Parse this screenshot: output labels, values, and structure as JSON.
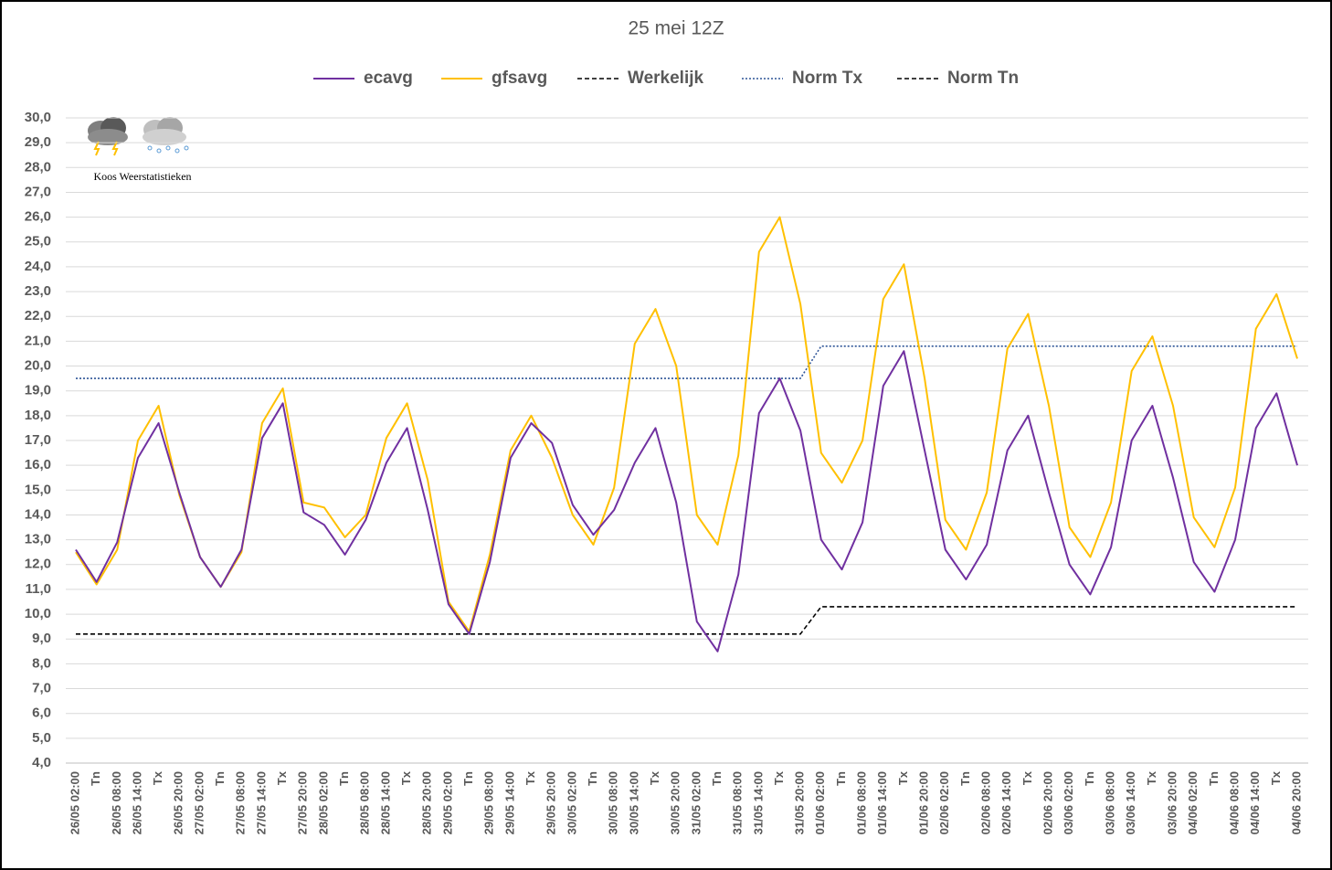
{
  "chart_data": {
    "type": "line",
    "title": "25 mei 12Z",
    "watermark": "Koos Weerstatistieken",
    "categories": [
      "26/05 02:00",
      "Tn",
      "26/05 08:00",
      "26/05 14:00",
      "Tx",
      "26/05 20:00",
      "27/05 02:00",
      "Tn",
      "27/05 08:00",
      "27/05 14:00",
      "Tx",
      "27/05 20:00",
      "28/05 02:00",
      "Tn",
      "28/05 08:00",
      "28/05 14:00",
      "Tx",
      "28/05 20:00",
      "29/05 02:00",
      "Tn",
      "29/05 08:00",
      "29/05 14:00",
      "Tx",
      "29/05 20:00",
      "30/05 02:00",
      "Tn",
      "30/05 08:00",
      "30/05 14:00",
      "Tx",
      "30/05 20:00",
      "31/05 02:00",
      "Tn",
      "31/05 08:00",
      "31/05 14:00",
      "Tx",
      "31/05 20:00",
      "01/06 02:00",
      "Tn",
      "01/06 08:00",
      "01/06 14:00",
      "Tx",
      "01/06 20:00",
      "02/06 02:00",
      "Tn",
      "02/06 08:00",
      "02/06 14:00",
      "Tx",
      "02/06 20:00",
      "03/06 02:00",
      "Tn",
      "03/06 08:00",
      "03/06 14:00",
      "Tx",
      "03/06 20:00",
      "04/06 02:00",
      "Tn",
      "04/06 08:00",
      "04/06 14:00",
      "Tx",
      "04/06 20:00"
    ],
    "series": [
      {
        "name": "ecavg",
        "color": "#7030a0",
        "style": "solid",
        "values": [
          12.6,
          11.3,
          12.9,
          16.3,
          17.7,
          14.9,
          12.3,
          11.1,
          12.6,
          17.1,
          18.5,
          14.1,
          13.6,
          12.4,
          13.8,
          16.1,
          17.5,
          14.2,
          10.4,
          9.2,
          12.1,
          16.3,
          17.7,
          16.9,
          14.4,
          13.2,
          14.2,
          16.1,
          17.5,
          14.5,
          9.7,
          8.5,
          11.6,
          18.1,
          19.5,
          17.4,
          13.0,
          11.8,
          13.7,
          19.2,
          20.6,
          16.6,
          12.6,
          11.4,
          12.8,
          16.6,
          18.0,
          14.9,
          12.0,
          10.8,
          12.7,
          17.0,
          18.4,
          15.5,
          12.1,
          10.9,
          13.0,
          17.5,
          18.9,
          16.0
        ]
      },
      {
        "name": "gfsavg",
        "color": "#ffc000",
        "style": "solid",
        "values": [
          12.5,
          11.2,
          12.6,
          17.0,
          18.4,
          14.8,
          12.3,
          11.1,
          12.5,
          17.7,
          19.1,
          14.5,
          14.3,
          13.1,
          14.0,
          17.1,
          18.5,
          15.4,
          10.5,
          9.3,
          12.4,
          16.6,
          18.0,
          16.3,
          14.0,
          12.8,
          15.1,
          20.9,
          22.3,
          20.0,
          14.0,
          12.8,
          16.4,
          24.6,
          26.0,
          22.5,
          16.5,
          15.3,
          17.0,
          22.7,
          24.1,
          19.5,
          13.8,
          12.6,
          14.9,
          20.7,
          22.1,
          18.4,
          13.5,
          12.3,
          14.5,
          19.8,
          21.2,
          18.4,
          13.9,
          12.7,
          15.1,
          21.5,
          22.9,
          20.3
        ]
      },
      {
        "name": "Werkelijk",
        "color": "#000000",
        "style": "dashed",
        "values": [
          null,
          null,
          null,
          null,
          null,
          null,
          null,
          null,
          null,
          null,
          null,
          null,
          null,
          null,
          null,
          null,
          null,
          null,
          null,
          null,
          null,
          null,
          null,
          null,
          null,
          null,
          null,
          null,
          null,
          null,
          null,
          null,
          null,
          null,
          null,
          null,
          null,
          null,
          null,
          null,
          null,
          null,
          null,
          null,
          null,
          null,
          null,
          null,
          null,
          null,
          null,
          null,
          null,
          null,
          null,
          null,
          null,
          null,
          null,
          null
        ]
      },
      {
        "name": "Norm Tx",
        "color": "#2f5597",
        "style": "dotted",
        "values": [
          19.5,
          19.5,
          19.5,
          19.5,
          19.5,
          19.5,
          19.5,
          19.5,
          19.5,
          19.5,
          19.5,
          19.5,
          19.5,
          19.5,
          19.5,
          19.5,
          19.5,
          19.5,
          19.5,
          19.5,
          19.5,
          19.5,
          19.5,
          19.5,
          19.5,
          19.5,
          19.5,
          19.5,
          19.5,
          19.5,
          19.5,
          19.5,
          19.5,
          19.5,
          19.5,
          19.5,
          20.8,
          20.8,
          20.8,
          20.8,
          20.8,
          20.8,
          20.8,
          20.8,
          20.8,
          20.8,
          20.8,
          20.8,
          20.8,
          20.8,
          20.8,
          20.8,
          20.8,
          20.8,
          20.8,
          20.8,
          20.8,
          20.8,
          20.8,
          20.8
        ]
      },
      {
        "name": "Norm Tn",
        "color": "#000000",
        "style": "dashed",
        "values": [
          9.2,
          9.2,
          9.2,
          9.2,
          9.2,
          9.2,
          9.2,
          9.2,
          9.2,
          9.2,
          9.2,
          9.2,
          9.2,
          9.2,
          9.2,
          9.2,
          9.2,
          9.2,
          9.2,
          9.2,
          9.2,
          9.2,
          9.2,
          9.2,
          9.2,
          9.2,
          9.2,
          9.2,
          9.2,
          9.2,
          9.2,
          9.2,
          9.2,
          9.2,
          9.2,
          9.2,
          10.3,
          10.3,
          10.3,
          10.3,
          10.3,
          10.3,
          10.3,
          10.3,
          10.3,
          10.3,
          10.3,
          10.3,
          10.3,
          10.3,
          10.3,
          10.3,
          10.3,
          10.3,
          10.3,
          10.3,
          10.3,
          10.3,
          10.3,
          10.3
        ]
      }
    ],
    "ylim": [
      4,
      30
    ],
    "yticks": [
      {
        "value": 4,
        "label": "4,0"
      },
      {
        "value": 5,
        "label": "5,0"
      },
      {
        "value": 6,
        "label": "6,0"
      },
      {
        "value": 7,
        "label": "7,0"
      },
      {
        "value": 8,
        "label": "8,0"
      },
      {
        "value": 9,
        "label": "9,0"
      },
      {
        "value": 10,
        "label": "10,0"
      },
      {
        "value": 11,
        "label": "11,0"
      },
      {
        "value": 12,
        "label": "12,0"
      },
      {
        "value": 13,
        "label": "13,0"
      },
      {
        "value": 14,
        "label": "14,0"
      },
      {
        "value": 15,
        "label": "15,0"
      },
      {
        "value": 16,
        "label": "16,0"
      },
      {
        "value": 17,
        "label": "17,0"
      },
      {
        "value": 18,
        "label": "18,0"
      },
      {
        "value": 19,
        "label": "19,0"
      },
      {
        "value": 20,
        "label": "20,0"
      },
      {
        "value": 21,
        "label": "21,0"
      },
      {
        "value": 22,
        "label": "22,0"
      },
      {
        "value": 23,
        "label": "23,0"
      },
      {
        "value": 24,
        "label": "24,0"
      },
      {
        "value": 25,
        "label": "25,0"
      },
      {
        "value": 26,
        "label": "26,0"
      },
      {
        "value": 27,
        "label": "27,0"
      },
      {
        "value": 28,
        "label": "28,0"
      },
      {
        "value": 29,
        "label": "29,0"
      },
      {
        "value": 30,
        "label": "30,0"
      }
    ],
    "grid": true,
    "legend": "top"
  }
}
